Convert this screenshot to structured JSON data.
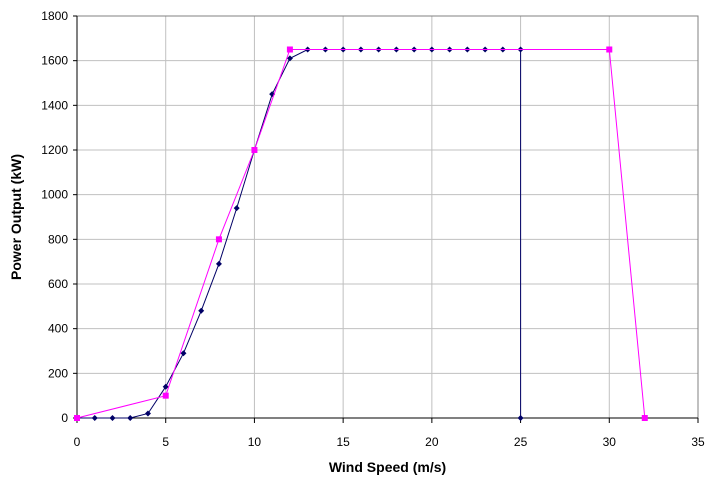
{
  "chart_data": {
    "type": "line",
    "title": "",
    "xlabel": "Wind Speed (m/s)",
    "ylabel": "Power Output (kW)",
    "xlim": [
      0,
      35
    ],
    "ylim": [
      0,
      1800
    ],
    "x_ticks": [
      "0",
      "5",
      "10",
      "15",
      "20",
      "25",
      "30",
      "35"
    ],
    "y_ticks": [
      "0",
      "200",
      "400",
      "600",
      "800",
      "1000",
      "1200",
      "1400",
      "1600",
      "1800"
    ],
    "grid": true,
    "legend": "none",
    "series": [
      {
        "color": "#000066",
        "marker": "diamond",
        "x": [
          0,
          1,
          2,
          3,
          4,
          5,
          6,
          7,
          8,
          9,
          10,
          11,
          12,
          13,
          14,
          15,
          16,
          17,
          18,
          19,
          20,
          21,
          22,
          23,
          24,
          25,
          25
        ],
        "y": [
          0,
          0,
          0,
          0,
          20,
          140,
          290,
          480,
          690,
          940,
          1200,
          1450,
          1610,
          1650,
          1650,
          1650,
          1650,
          1650,
          1650,
          1650,
          1650,
          1650,
          1650,
          1650,
          1650,
          1650,
          0
        ]
      },
      {
        "color": "#ff00ff",
        "marker": "square",
        "x": [
          0,
          5,
          8,
          10,
          12,
          30,
          32
        ],
        "y": [
          0,
          100,
          800,
          1200,
          1650,
          1650,
          0
        ]
      }
    ]
  }
}
